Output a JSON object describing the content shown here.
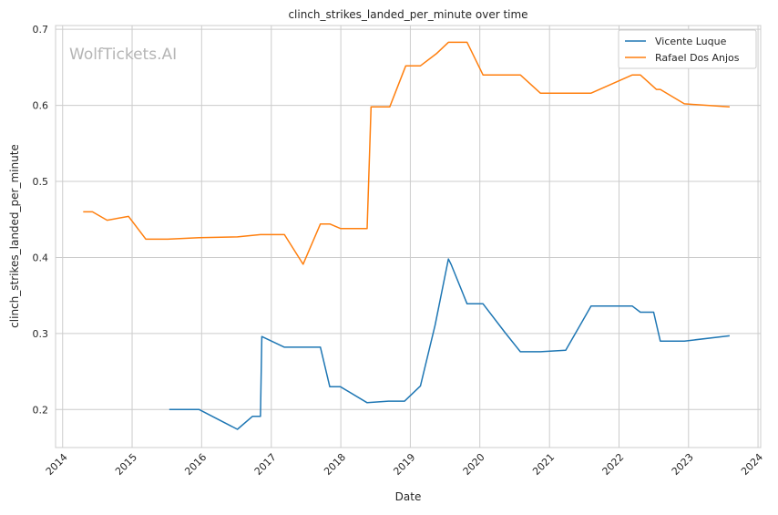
{
  "watermark": "WolfTickets.AI",
  "colors": {
    "series1": "#1f77b4",
    "series2": "#ff7f0e",
    "grid": "#cccccc",
    "frame": "#cccccc"
  },
  "chart_data": {
    "type": "line",
    "title": "clinch_strikes_landed_per_minute over time",
    "xlabel": "Date",
    "ylabel": "clinch_strikes_landed_per_minute",
    "xlim": [
      "2013-11-25",
      "2024-01-15"
    ],
    "ylim": [
      0.15,
      0.705
    ],
    "x_ticks": [
      "2014",
      "2015",
      "2016",
      "2017",
      "2018",
      "2019",
      "2020",
      "2021",
      "2022",
      "2023",
      "2024"
    ],
    "y_ticks": [
      "0.2",
      "0.3",
      "0.4",
      "0.5",
      "0.6",
      "0.7"
    ],
    "grid": true,
    "legend_position": "top-right",
    "series": [
      {
        "name": "Vicente Luque",
        "color": "#1f77b4",
        "x": [
          "2015-07-15",
          "2015-12-19",
          "2016-07-07",
          "2016-09-24",
          "2016-11-05",
          "2016-11-12",
          "2017-03-11",
          "2017-09-16",
          "2017-11-04",
          "2017-12-30",
          "2018-05-19",
          "2018-09-08",
          "2018-12-02",
          "2019-02-23",
          "2019-05-11",
          "2019-07-20",
          "2019-08-03",
          "2019-10-26",
          "2020-01-18",
          "2020-05-13",
          "2020-08-01",
          "2020-11-14",
          "2021-03-27",
          "2021-08-07",
          "2022-03-12",
          "2022-04-23",
          "2022-07-02",
          "2022-08-06",
          "2022-12-10",
          "2023-08-05"
        ],
        "values": [
          0.2,
          0.2,
          0.174,
          0.191,
          0.191,
          0.296,
          0.282,
          0.282,
          0.23,
          0.23,
          0.209,
          0.211,
          0.211,
          0.231,
          0.311,
          0.398,
          0.391,
          0.339,
          0.339,
          0.301,
          0.276,
          0.276,
          0.278,
          0.336,
          0.336,
          0.328,
          0.328,
          0.29,
          0.29,
          0.297
        ]
      },
      {
        "name": "Rafael Dos Anjos",
        "color": "#ff7f0e",
        "x": [
          "2014-04-19",
          "2014-06-07",
          "2014-08-23",
          "2014-12-13",
          "2015-03-14",
          "2015-07-07",
          "2015-12-19",
          "2016-07-07",
          "2016-11-05",
          "2017-03-11",
          "2017-06-17",
          "2017-09-16",
          "2017-11-04",
          "2017-12-30",
          "2018-05-19",
          "2018-06-09",
          "2018-09-15",
          "2018-12-08",
          "2019-02-23",
          "2019-05-18",
          "2019-07-20",
          "2019-10-26",
          "2020-01-18",
          "2020-08-01",
          "2020-11-14",
          "2021-03-27",
          "2021-08-07",
          "2022-03-12",
          "2022-04-23",
          "2022-07-16",
          "2022-08-06",
          "2022-12-10",
          "2023-08-05"
        ],
        "values": [
          0.46,
          0.46,
          0.449,
          0.454,
          0.424,
          0.424,
          0.426,
          0.427,
          0.43,
          0.43,
          0.391,
          0.444,
          0.444,
          0.438,
          0.438,
          0.598,
          0.598,
          0.652,
          0.652,
          0.668,
          0.683,
          0.683,
          0.64,
          0.64,
          0.616,
          0.616,
          0.616,
          0.64,
          0.64,
          0.621,
          0.621,
          0.602,
          0.598
        ]
      }
    ]
  }
}
